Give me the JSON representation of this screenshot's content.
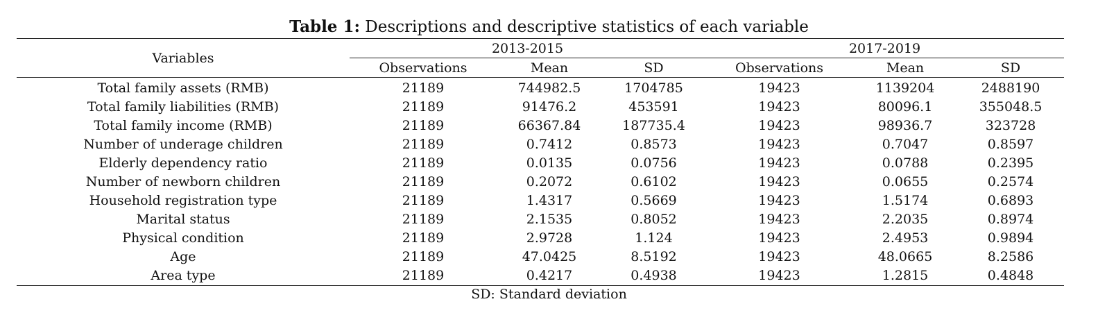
{
  "caption": {
    "lead": "Table 1:",
    "text": " Descriptions and descriptive statistics of each variable"
  },
  "header": {
    "variables": "Variables",
    "group1": "2013-2015",
    "group2": "2017-2019",
    "sub": [
      "Observations",
      "Mean",
      "SD",
      "Observations",
      "Mean",
      "SD"
    ]
  },
  "rows": [
    {
      "variable": "Total family assets (RMB)",
      "values": [
        "21189",
        "744982.5",
        "1704785",
        "19423",
        "1139204",
        "2488190"
      ]
    },
    {
      "variable": "Total family liabilities (RMB)",
      "values": [
        "21189",
        "91476.2",
        "453591",
        "19423",
        "80096.1",
        "355048.5"
      ]
    },
    {
      "variable": "Total family income (RMB)",
      "values": [
        "21189",
        "66367.84",
        "187735.4",
        "19423",
        "98936.7",
        "323728"
      ]
    },
    {
      "variable": "Number of underage children",
      "values": [
        "21189",
        "0.7412",
        "0.8573",
        "19423",
        "0.7047",
        "0.8597"
      ]
    },
    {
      "variable": "Elderly dependency ratio",
      "values": [
        "21189",
        "0.0135",
        "0.0756",
        "19423",
        "0.0788",
        "0.2395"
      ]
    },
    {
      "variable": "Number of newborn children",
      "values": [
        "21189",
        "0.2072",
        "0.6102",
        "19423",
        "0.0655",
        "0.2574"
      ]
    },
    {
      "variable": "Household registration type",
      "values": [
        "21189",
        "1.4317",
        "0.5669",
        "19423",
        "1.5174",
        "0.6893"
      ]
    },
    {
      "variable": "Marital status",
      "values": [
        "21189",
        "2.1535",
        "0.8052",
        "19423",
        "2.2035",
        "0.8974"
      ]
    },
    {
      "variable": "Physical condition",
      "values": [
        "21189",
        "2.9728",
        "1.124",
        "19423",
        "2.4953",
        "0.9894"
      ]
    },
    {
      "variable": "Age",
      "values": [
        "21189",
        "47.0425",
        "8.5192",
        "19423",
        "48.0665",
        "8.2586"
      ]
    },
    {
      "variable": "Area type",
      "values": [
        "21189",
        "0.4217",
        "0.4938",
        "19423",
        "1.2815",
        "0.4848"
      ]
    }
  ],
  "note": "SD: Standard deviation"
}
